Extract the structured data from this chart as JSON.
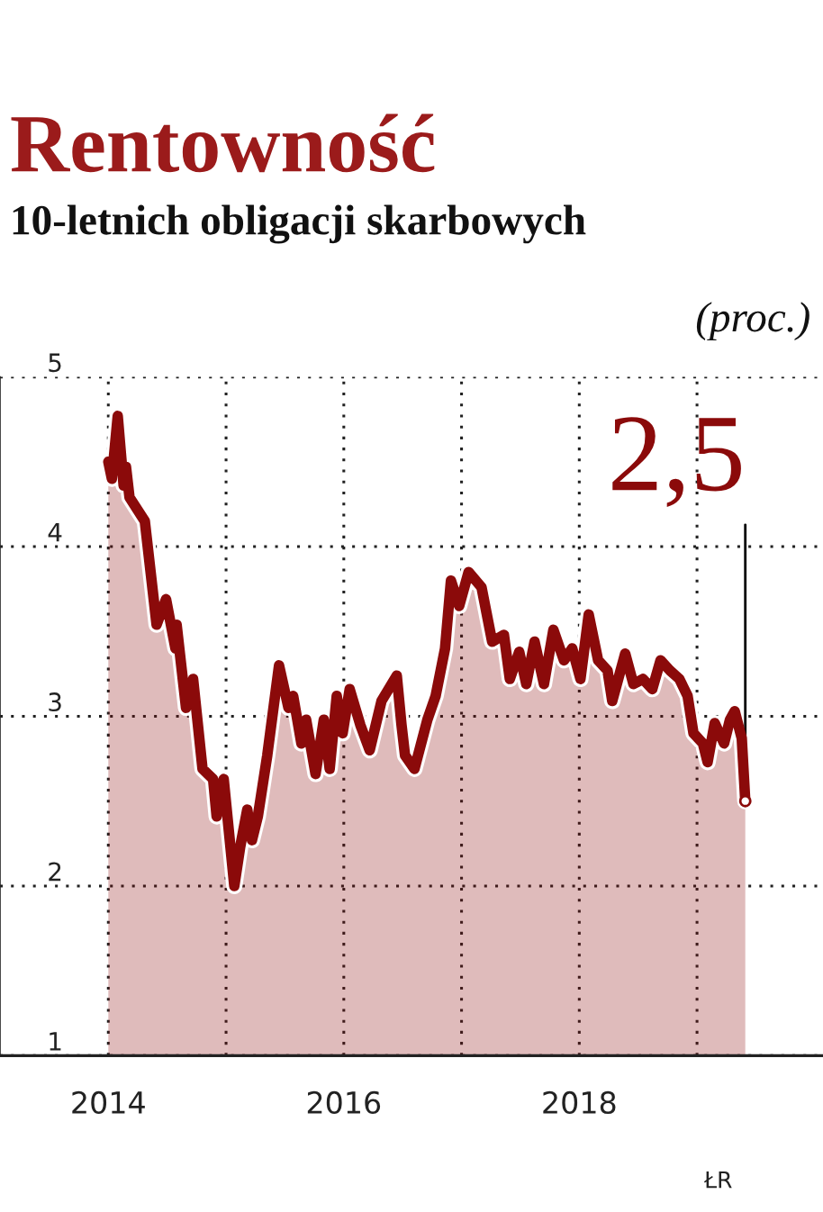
{
  "chart_data": {
    "type": "area",
    "title": "Rentowność",
    "subtitle": "10-letnich obligacji skarbowych",
    "ylabel": "(proc.)",
    "series": [
      {
        "color": "#8b0a0a",
        "x": [
          2014.0,
          2014.03,
          2014.08,
          2014.13,
          2014.15,
          2014.18,
          2014.31,
          2014.41,
          2014.49,
          2014.57,
          2014.58,
          2014.66,
          2014.72,
          2014.8,
          2014.89,
          2014.92,
          2014.98,
          2015.07,
          2015.12,
          2015.18,
          2015.22,
          2015.27,
          2015.35,
          2015.45,
          2015.53,
          2015.57,
          2015.64,
          2015.68,
          2015.76,
          2015.83,
          2015.88,
          2015.94,
          2015.99,
          2016.05,
          2016.14,
          2016.22,
          2016.32,
          2016.45,
          2016.49,
          2016.52,
          2016.6,
          2016.71,
          2016.78,
          2016.86,
          2016.91,
          2016.98,
          2017.06,
          2017.17,
          2017.26,
          2017.36,
          2017.41,
          2017.49,
          2017.55,
          2017.62,
          2017.7,
          2017.78,
          2017.87,
          2017.94,
          2018.01,
          2018.08,
          2018.16,
          2018.24,
          2018.28,
          2018.39,
          2018.46,
          2018.54,
          2018.62,
          2018.69,
          2018.77,
          2018.85,
          2018.92,
          2018.97,
          2019.05,
          2019.09,
          2019.15,
          2019.23,
          2019.28,
          2019.32,
          2019.38,
          2019.41
        ],
        "values": [
          4.5,
          4.4,
          4.77,
          4.36,
          4.47,
          4.29,
          4.15,
          3.54,
          3.69,
          3.4,
          3.54,
          3.05,
          3.22,
          2.69,
          2.63,
          2.41,
          2.63,
          2.0,
          2.23,
          2.45,
          2.27,
          2.41,
          2.77,
          3.3,
          3.05,
          3.12,
          2.84,
          2.98,
          2.66,
          2.98,
          2.69,
          3.12,
          2.9,
          3.16,
          2.95,
          2.8,
          3.09,
          3.24,
          2.95,
          2.77,
          2.69,
          2.98,
          3.12,
          3.4,
          3.8,
          3.65,
          3.85,
          3.76,
          3.44,
          3.48,
          3.22,
          3.38,
          3.19,
          3.44,
          3.19,
          3.51,
          3.33,
          3.4,
          3.22,
          3.6,
          3.33,
          3.27,
          3.09,
          3.37,
          3.19,
          3.22,
          3.16,
          3.33,
          3.27,
          3.22,
          3.12,
          2.9,
          2.84,
          2.73,
          2.96,
          2.84,
          2.98,
          3.03,
          2.87,
          2.5
        ]
      }
    ],
    "xlim": [
      2013.08,
      2020.07
    ],
    "xticks": [
      2014,
      {
        "value": 2015,
        "label": null
      },
      2016,
      {
        "value": 2017,
        "label": null
      },
      2018,
      {
        "value": 2019,
        "label": null
      }
    ],
    "ylim": [
      1,
      5
    ],
    "yticks": [
      1,
      2,
      3,
      4,
      5
    ],
    "grid": true,
    "annotations": [
      {
        "text": "2,5",
        "x": 2019.41,
        "y": 2.5
      },
      "ŁR"
    ]
  }
}
